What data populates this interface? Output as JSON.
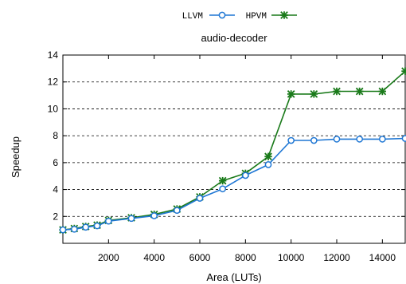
{
  "chart_data": {
    "type": "line",
    "title": "audio-decoder",
    "xlabel": "Area (LUTs)",
    "ylabel": "Speedup",
    "xlim": [
      0,
      15000
    ],
    "ylim": [
      0,
      14
    ],
    "xticks": [
      2000,
      4000,
      6000,
      8000,
      10000,
      12000,
      14000
    ],
    "yticks": [
      2,
      4,
      6,
      8,
      10,
      12,
      14
    ],
    "grid": "horizontal dashed",
    "legend_position": "top-center",
    "series": [
      {
        "name": "LLVM",
        "color": "#1f77d4",
        "marker": "circle",
        "x": [
          1,
          500,
          1000,
          1500,
          2000,
          3000,
          4000,
          5000,
          6000,
          7000,
          8000,
          9000,
          10000,
          11000,
          12000,
          13000,
          14000,
          15000
        ],
        "y": [
          1.0,
          1.05,
          1.2,
          1.3,
          1.65,
          1.85,
          2.05,
          2.45,
          3.35,
          4.05,
          5.05,
          5.85,
          7.65,
          7.65,
          7.75,
          7.75,
          7.75,
          7.8
        ]
      },
      {
        "name": "HPVM",
        "color": "#1a7a1a",
        "marker": "x",
        "x": [
          1,
          500,
          1000,
          1500,
          2000,
          3000,
          4000,
          5000,
          6000,
          7000,
          8000,
          9000,
          10000,
          11000,
          12000,
          13000,
          14000,
          15000
        ],
        "y": [
          1.0,
          1.1,
          1.25,
          1.35,
          1.7,
          1.9,
          2.15,
          2.55,
          3.45,
          4.65,
          5.2,
          6.45,
          11.1,
          11.1,
          11.3,
          11.3,
          11.3,
          12.8
        ]
      }
    ]
  }
}
